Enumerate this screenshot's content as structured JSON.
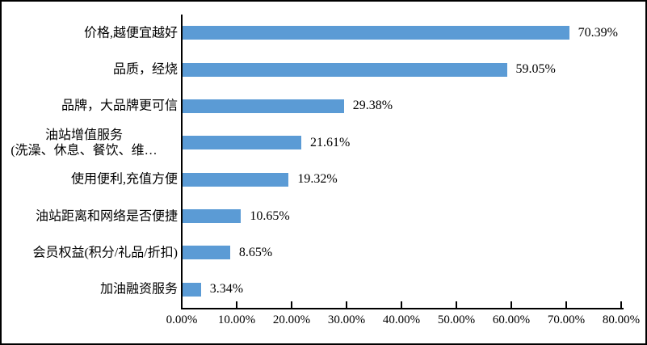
{
  "chart_data": {
    "type": "bar",
    "orientation": "horizontal",
    "title": "",
    "xlabel": "",
    "ylabel": "",
    "xlim": [
      0,
      80
    ],
    "grid": false,
    "legend": "none",
    "bar_color": "#5B9BD5",
    "axis_color": "#000000",
    "categories": [
      "价格,越便宜越好",
      "品质，经烧",
      "品牌，大品牌更可信",
      "油站增值服务\n(洗澡、休息、餐饮、维…",
      "使用便利,充值方便",
      "油站距离和网络是否便捷",
      "会员权益(积分/礼品/折扣)",
      "加油融资服务"
    ],
    "values": [
      70.39,
      59.05,
      29.38,
      21.61,
      19.32,
      10.65,
      8.65,
      3.34
    ],
    "value_labels": [
      "70.39%",
      "59.05%",
      "29.38%",
      "21.61%",
      "19.32%",
      "10.65%",
      "8.65%",
      "3.34%"
    ],
    "x_ticks": [
      "0.00%",
      "10.00%",
      "20.00%",
      "30.00%",
      "40.00%",
      "50.00%",
      "60.00%",
      "70.00%",
      "80.00%"
    ]
  }
}
